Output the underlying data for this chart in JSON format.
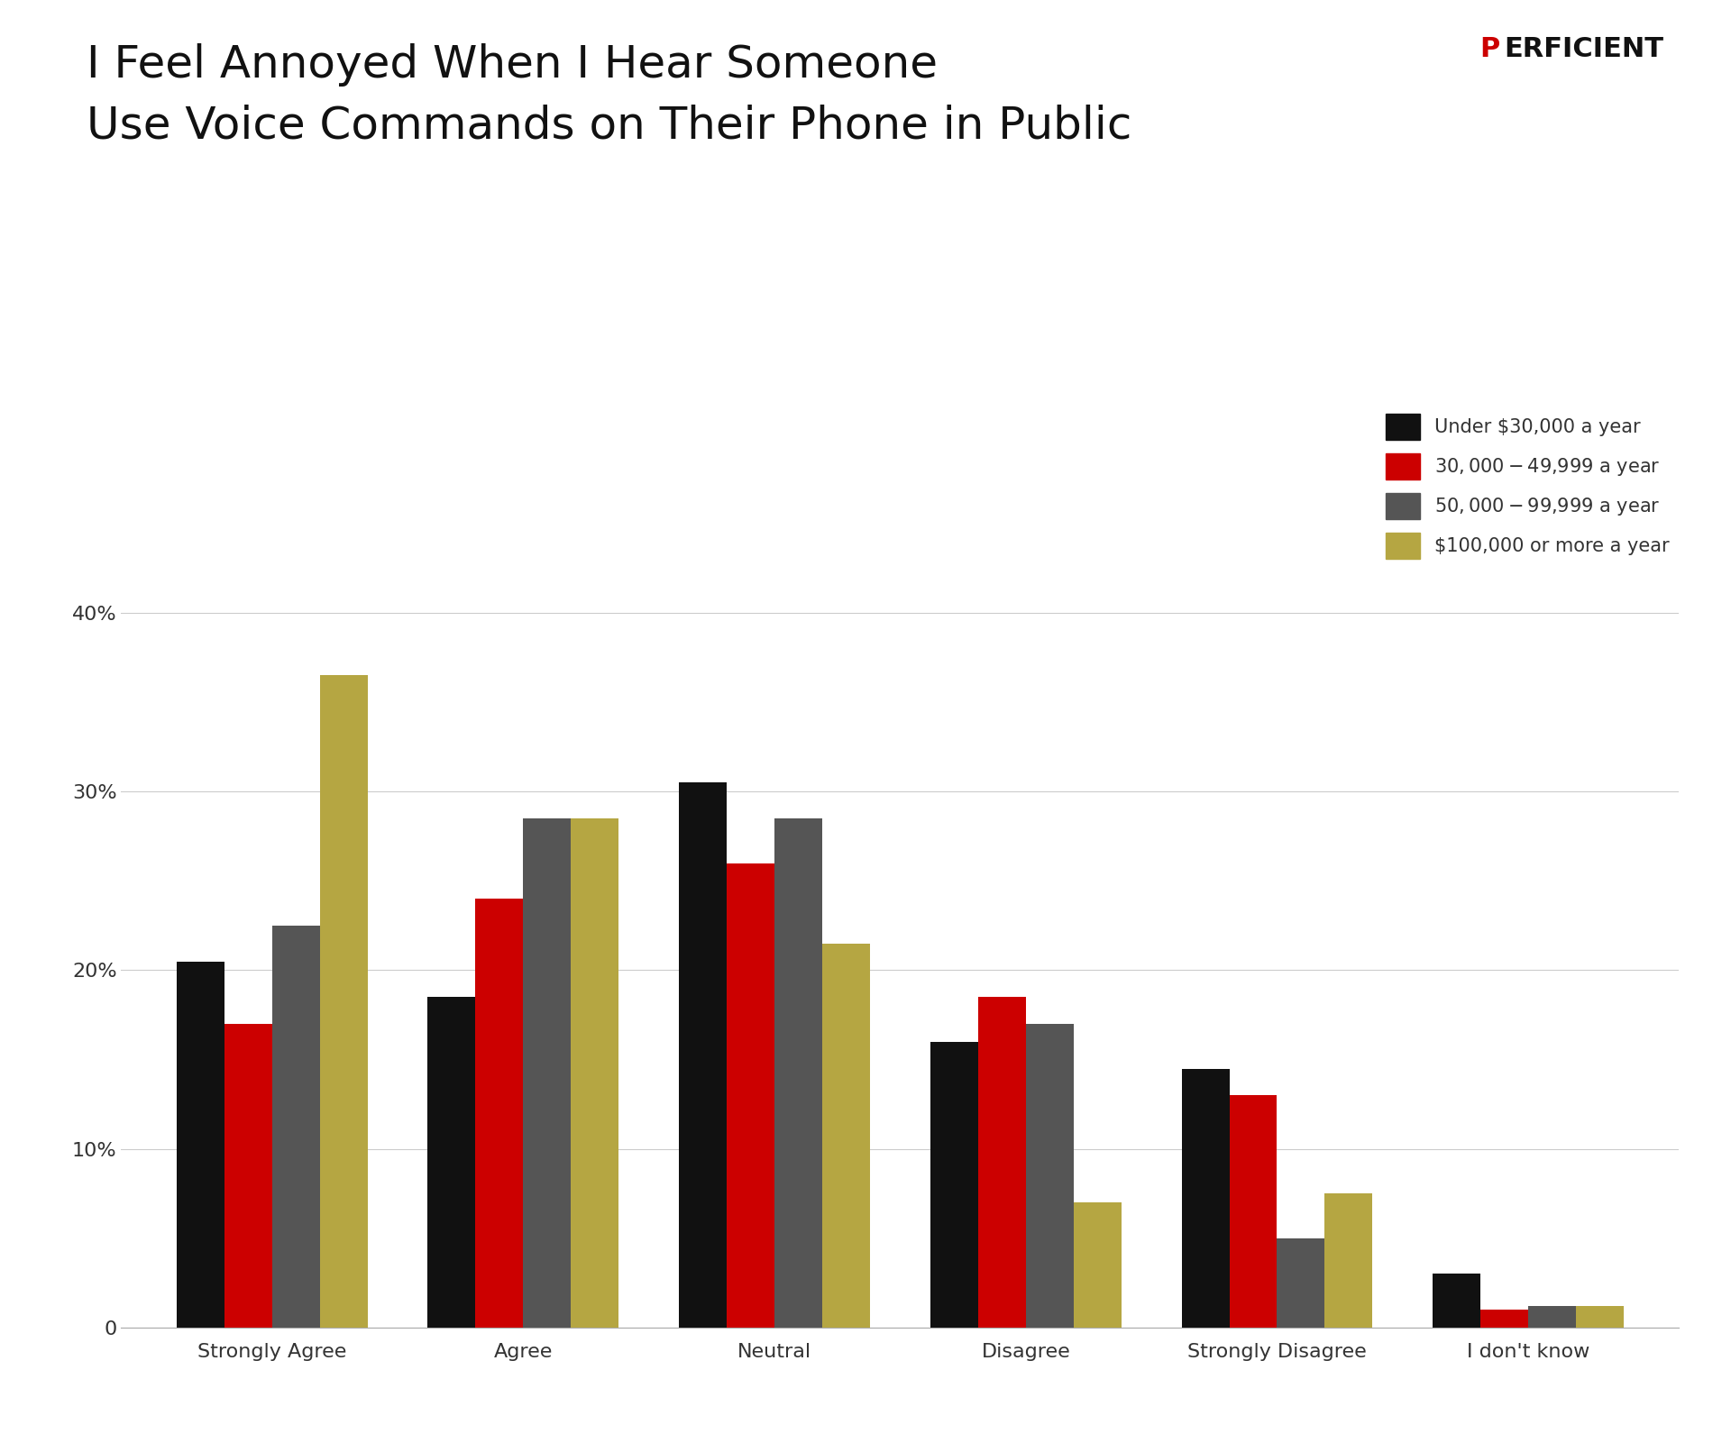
{
  "title": "I Feel Annoyed When I Hear Someone\nUse Voice Commands on Their Phone in Public",
  "categories": [
    "Strongly Agree",
    "Agree",
    "Neutral",
    "Disagree",
    "Strongly Disagree",
    "I don't know"
  ],
  "series": {
    "Under $30,000 a year": [
      20.5,
      18.5,
      30.5,
      16.0,
      14.5,
      3.0
    ],
    "$30,000-$49,999 a year": [
      17.0,
      24.0,
      26.0,
      18.5,
      13.0,
      1.0
    ],
    "$50,000-$99,999 a year": [
      22.5,
      28.5,
      28.5,
      17.0,
      5.0,
      1.2
    ],
    "$100,000 or more a year": [
      36.5,
      28.5,
      21.5,
      7.0,
      7.5,
      1.2
    ]
  },
  "colors": {
    "Under $30,000 a year": "#111111",
    "$30,000-$49,999 a year": "#cc0000",
    "$50,000-$99,999 a year": "#555555",
    "$100,000 or more a year": "#b5a642"
  },
  "ylim": [
    0,
    42
  ],
  "yticks": [
    0,
    10,
    20,
    30,
    40
  ],
  "ytick_labels": [
    "0",
    "10%",
    "20%",
    "30%",
    "40%"
  ],
  "background_color": "#ffffff",
  "title_fontsize": 36,
  "legend_fontsize": 15,
  "tick_fontsize": 16
}
